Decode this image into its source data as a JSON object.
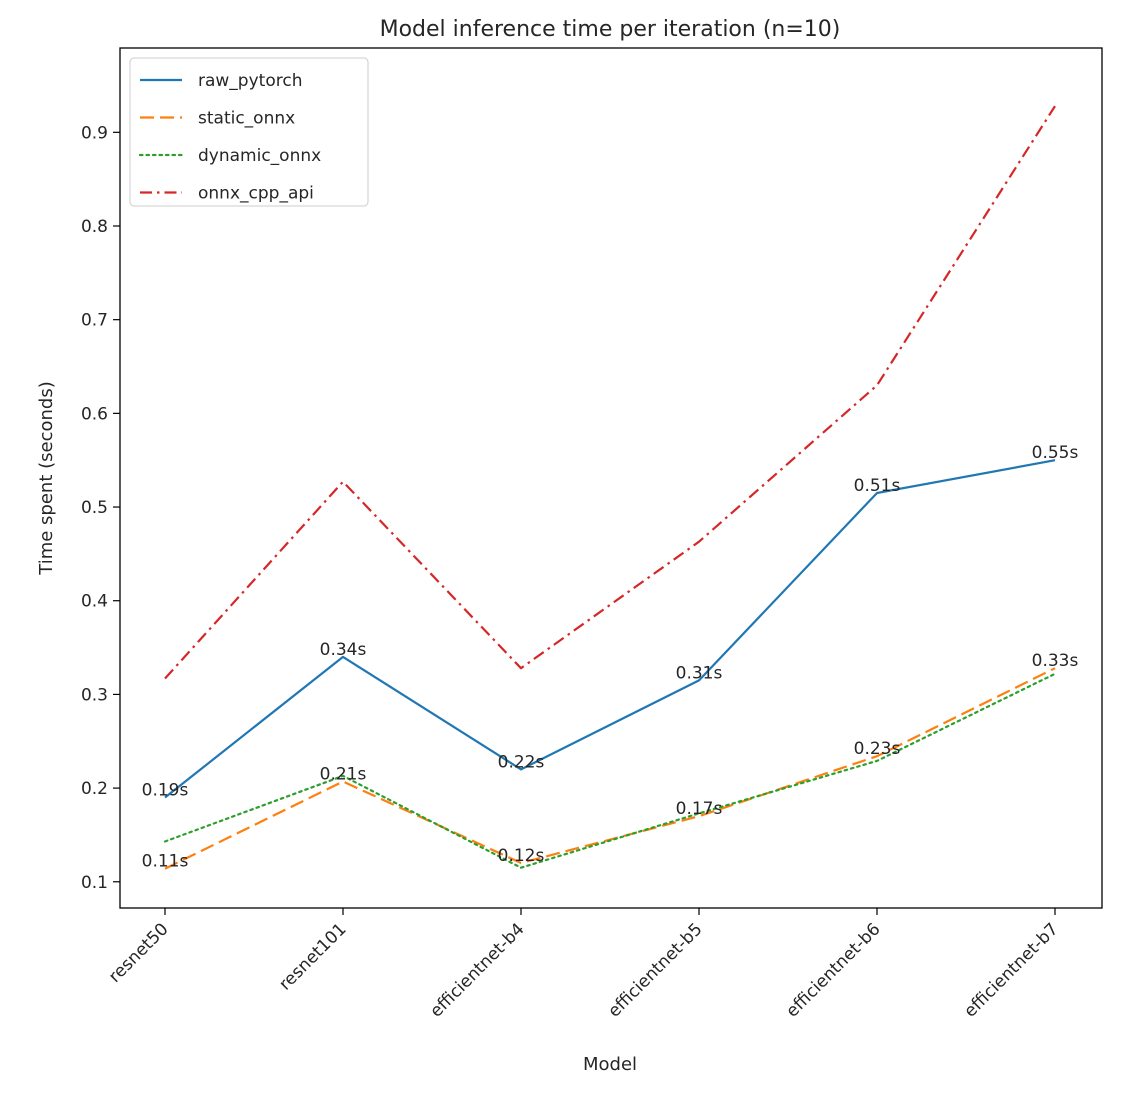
{
  "chart_data": {
    "type": "line",
    "title": "Model inference time per iteration (n=10)",
    "xlabel": "Model",
    "ylabel": "Time spent (seconds)",
    "categories": [
      "resnet50",
      "resnet101",
      "efficientnet-b4",
      "efficientnet-b5",
      "efficientnet-b6",
      "efficientnet-b7"
    ],
    "ylim": [
      0.072,
      0.99
    ],
    "yticks": [
      0.1,
      0.2,
      0.3,
      0.4,
      0.5,
      0.6,
      0.7,
      0.8,
      0.9
    ],
    "ytick_labels": [
      "0.1",
      "0.2",
      "0.3",
      "0.4",
      "0.5",
      "0.6",
      "0.7",
      "0.8",
      "0.9"
    ],
    "grid": false,
    "legend_position": "top-left",
    "series": [
      {
        "name": "raw_pytorch",
        "color": "#1f77b4",
        "dash": "solid",
        "values": [
          0.19,
          0.34,
          0.22,
          0.315,
          0.515,
          0.55
        ],
        "labels": [
          "0.19s",
          "0.34s",
          "0.22s",
          "0.31s",
          "0.51s",
          "0.55s"
        ]
      },
      {
        "name": "static_onnx",
        "color": "#ff7f0e",
        "dash": "dashed",
        "values": [
          0.114,
          0.207,
          0.12,
          0.17,
          0.234,
          0.328
        ],
        "labels": [
          "0.11s",
          "0.21s",
          "0.12s",
          "0.17s",
          "0.23s",
          "0.33s"
        ]
      },
      {
        "name": "dynamic_onnx",
        "color": "#2ca02c",
        "dash": "dotted",
        "values": [
          0.143,
          0.213,
          0.115,
          0.173,
          0.229,
          0.322
        ],
        "labels": null
      },
      {
        "name": "onnx_cpp_api",
        "color": "#d62728",
        "dash": "dashdot",
        "values": [
          0.317,
          0.527,
          0.328,
          0.463,
          0.63,
          0.928
        ],
        "labels": null
      }
    ]
  }
}
